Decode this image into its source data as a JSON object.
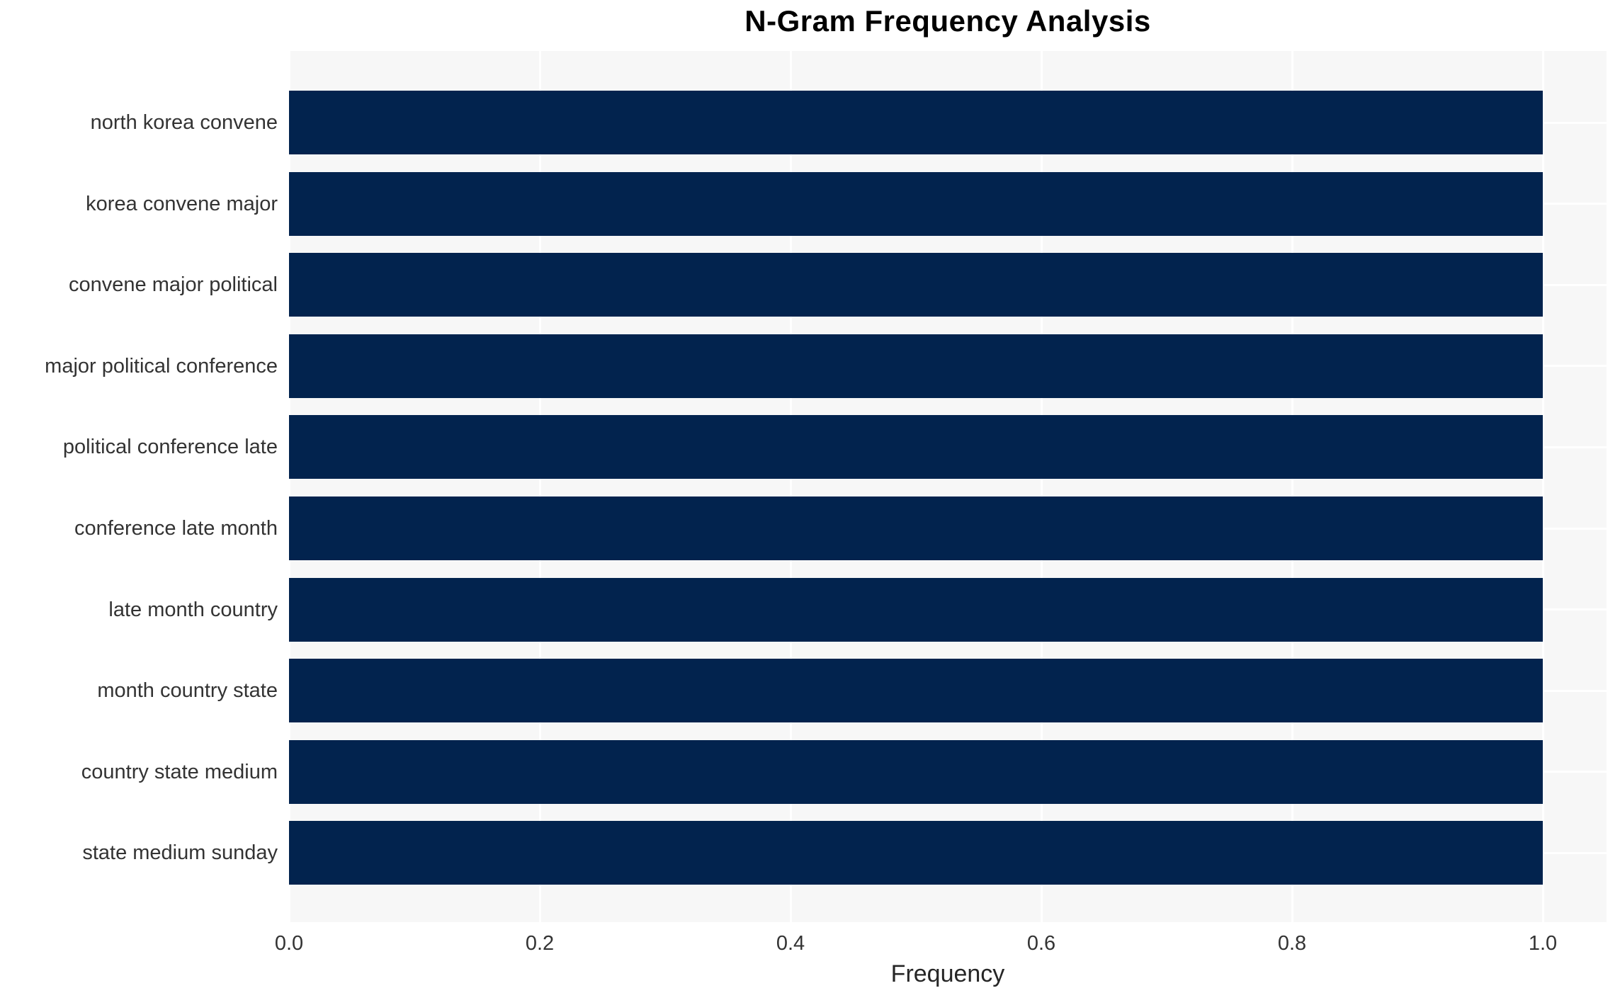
{
  "chart_data": {
    "type": "bar",
    "orientation": "horizontal",
    "title": "N-Gram Frequency Analysis",
    "xlabel": "Frequency",
    "ylabel": "",
    "categories": [
      "north korea convene",
      "korea convene major",
      "convene major political",
      "major political conference",
      "political conference late",
      "conference late month",
      "late month country",
      "month country state",
      "country state medium",
      "state medium sunday"
    ],
    "values": [
      1.0,
      1.0,
      1.0,
      1.0,
      1.0,
      1.0,
      1.0,
      1.0,
      1.0,
      1.0
    ],
    "xlim": [
      0.0,
      1.05
    ],
    "xticks": [
      0.0,
      0.2,
      0.4,
      0.6,
      0.8,
      1.0
    ],
    "grid": true,
    "legend": "none",
    "colors": {
      "bar": "#02234E",
      "plot_background": "#F7F7F7",
      "figure_background": "#FFFFFF",
      "gridline": "#FFFFFF",
      "tick_text": "#333333",
      "title_text": "#000000"
    }
  }
}
